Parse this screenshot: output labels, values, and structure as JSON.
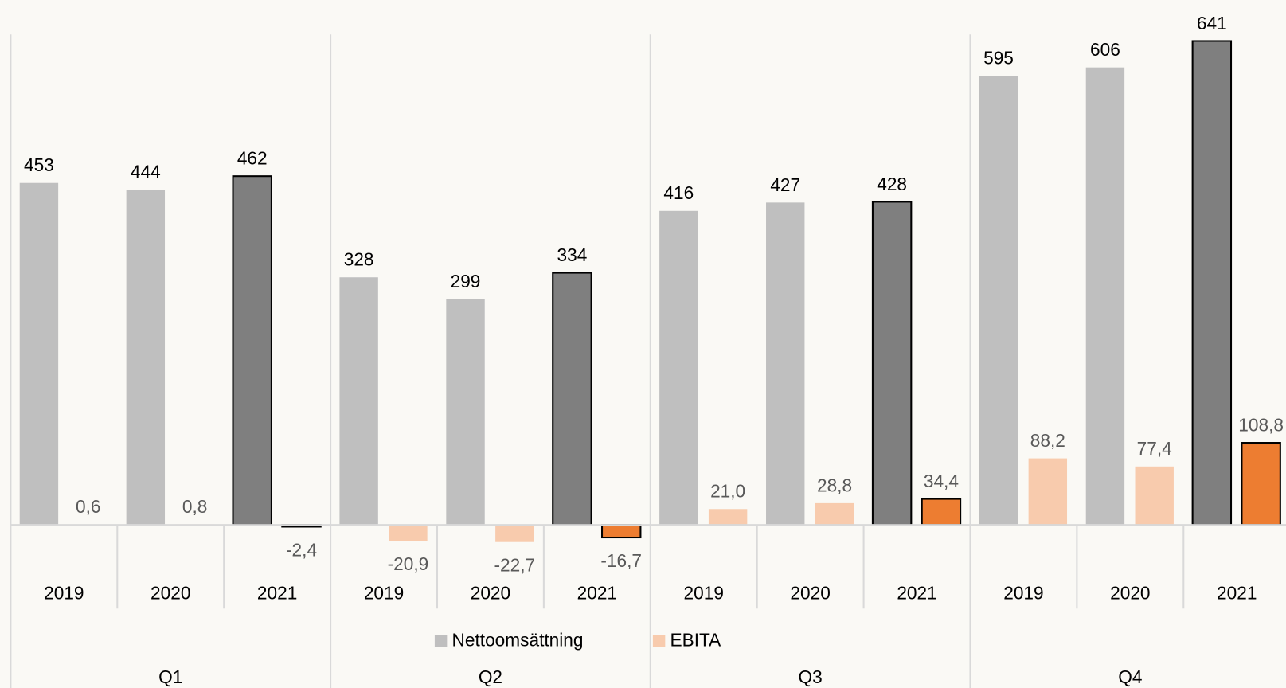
{
  "chart_data": {
    "type": "bar",
    "categories": [
      "2019",
      "2020",
      "2021",
      "2019",
      "2020",
      "2021",
      "2019",
      "2020",
      "2021",
      "2019",
      "2020",
      "2021"
    ],
    "groups": [
      "Q1",
      "Q2",
      "Q3",
      "Q4"
    ],
    "series": [
      {
        "name": "Nettoomsättning",
        "color": "#bfbfbf",
        "colors": [
          "#bfbfbf",
          "#bfbfbf",
          "#7f7f7f",
          "#bfbfbf",
          "#bfbfbf",
          "#7f7f7f",
          "#bfbfbf",
          "#bfbfbf",
          "#7f7f7f",
          "#bfbfbf",
          "#bfbfbf",
          "#7f7f7f"
        ],
        "values": [
          453,
          444,
          462,
          328,
          299,
          334,
          416,
          427,
          428,
          595,
          606,
          641
        ]
      },
      {
        "name": "EBITA",
        "color": "#f8cbad",
        "colors": [
          "#f8cbad",
          "#f8cbad",
          "#ed7d31",
          "#f8cbad",
          "#f8cbad",
          "#ed7d31",
          "#f8cbad",
          "#f8cbad",
          "#ed7d31",
          "#f8cbad",
          "#f8cbad",
          "#ed7d31"
        ],
        "values": [
          0.6,
          0.8,
          -2.4,
          -20.9,
          -22.7,
          -16.7,
          21.0,
          28.8,
          34.4,
          88.2,
          77.4,
          108.8
        ],
        "value_labels": [
          "0,6",
          "0,8",
          "-2,4",
          "-20,9",
          "-22,7",
          "-16,7",
          "21,0",
          "28,8",
          "34,4",
          "88,2",
          "77,4",
          "108,8"
        ]
      }
    ],
    "ylim": [
      -30,
      660
    ]
  }
}
